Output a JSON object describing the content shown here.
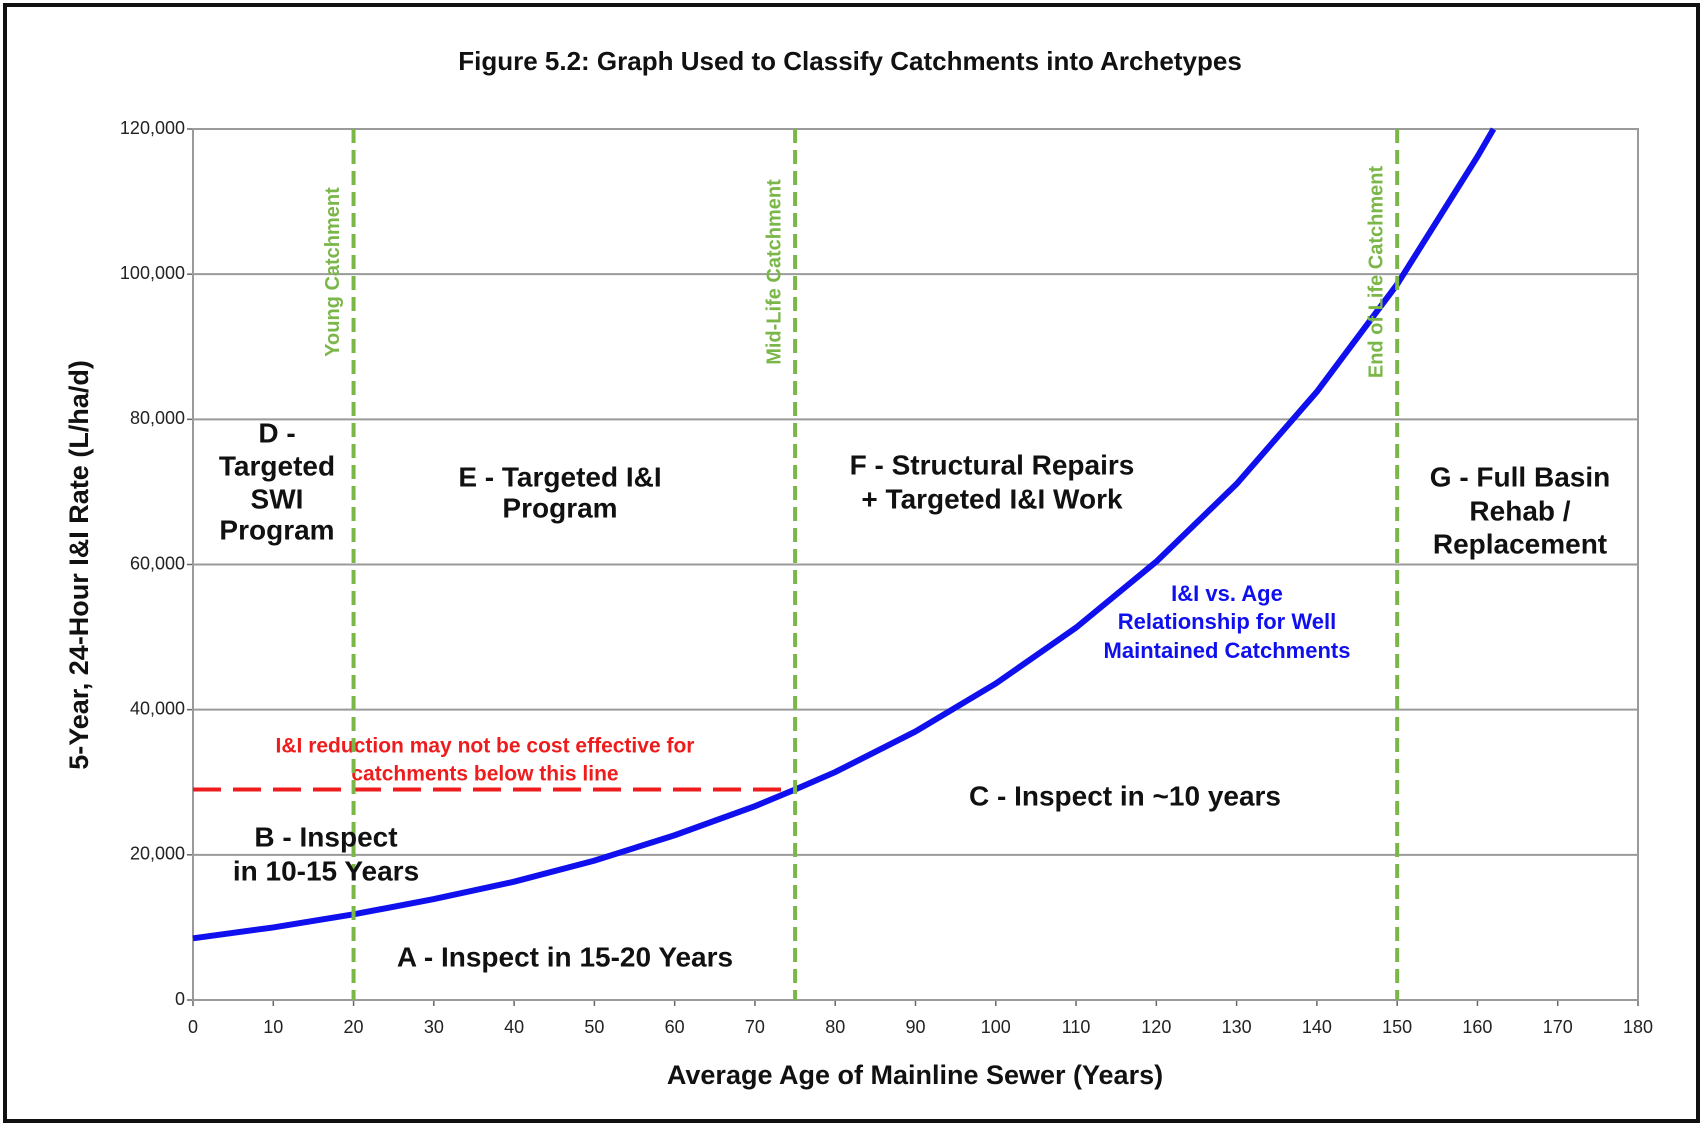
{
  "chart_data": {
    "type": "line",
    "title": "Figure 5.2:  Graph Used to Classify Catchments into Archetypes",
    "xlabel": "Average Age of Mainline Sewer (Years)",
    "ylabel": "5-Year, 24-Hour I&I Rate (L/ha/d)",
    "xlim": [
      0,
      180
    ],
    "xticks": [
      0,
      10,
      20,
      30,
      40,
      50,
      60,
      70,
      80,
      90,
      100,
      110,
      120,
      130,
      140,
      150,
      160,
      170,
      180
    ],
    "ylim": [
      0,
      120000
    ],
    "yticks": [
      0,
      {
        "value": 20000,
        "label": "20,000"
      },
      {
        "value": 40000,
        "label": "40,000"
      },
      {
        "value": 60000,
        "label": "60,000"
      },
      {
        "value": 80000,
        "label": "80,000"
      },
      {
        "value": 100000,
        "label": "100,000"
      },
      {
        "value": 120000,
        "label": "120,000"
      }
    ],
    "grid": true,
    "x": [
      0,
      10,
      20,
      30,
      40,
      50,
      60,
      70,
      75,
      80,
      90,
      100,
      110,
      120,
      130,
      140,
      150,
      160,
      162
    ],
    "series": [
      {
        "color": "#1010ee",
        "values": [
          8500,
          10000,
          11800,
          13900,
          16300,
          19200,
          22700,
          26700,
          29000,
          31400,
          37000,
          43600,
          51300,
          60400,
          71100,
          83800,
          98600,
          116200,
          120000
        ]
      }
    ],
    "vlines": [
      {
        "x": 20,
        "label": "Young Catchment",
        "color": "#7ab648"
      },
      {
        "x": 75,
        "label": "Mid-Life Catchment",
        "color": "#7ab648"
      },
      {
        "x": 150,
        "label": "End of Life Catchment",
        "color": "#7ab648"
      }
    ],
    "hline": {
      "y": 29000,
      "xrange": [
        0,
        75
      ],
      "color": "#ee1c1c",
      "label": [
        "I&I reduction may not  be cost effective for",
        "catchments below this line"
      ]
    },
    "annotations": [
      [
        "D -",
        "Targeted",
        "SWI",
        "Program"
      ],
      [
        "E - Targeted I&I",
        "Program"
      ],
      [
        "F - Structural Repairs",
        "+ Targeted I&I Work"
      ],
      [
        "G - Full Basin",
        "Rehab /",
        "Replacement"
      ],
      [
        "I&I vs. Age",
        "Relationship for Well",
        "Maintained Catchments"
      ],
      [
        "B - Inspect",
        "in 10-15 Years"
      ],
      [
        "C - Inspect in ~10 years"
      ],
      [
        "A - Inspect in 15-20 Years"
      ]
    ]
  }
}
